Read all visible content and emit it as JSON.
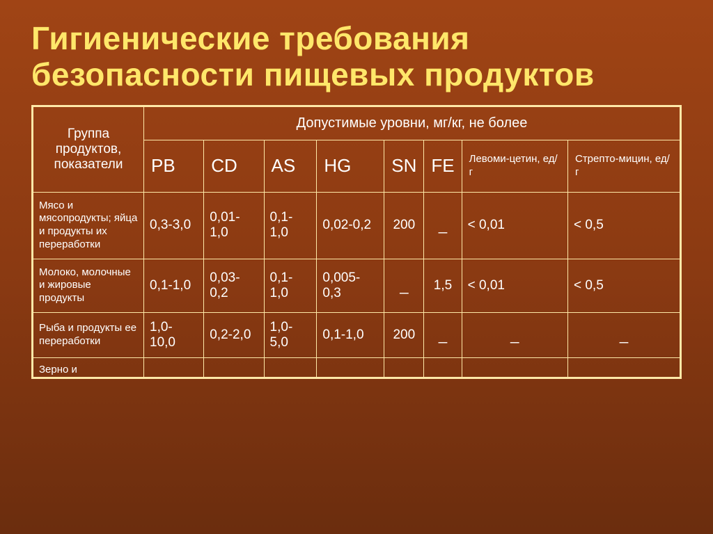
{
  "title": "Гигиенические требования безопасности пищевых продуктов",
  "header": {
    "group_label": "Группа продуктов, показатели",
    "super": "Допустимые уровни, мг/кг, не более",
    "cols": [
      "PB",
      "CD",
      "AS",
      "HG",
      "SN",
      "FE",
      "Левоми-цетин, ед/г",
      "Стрепто-мицин, ед/г"
    ]
  },
  "rows": [
    {
      "label": "Мясо и мясопродукты; яйца и продукты их переработки",
      "vals": [
        "0,3-3,0",
        "0,01-1,0",
        "0,1-1,0",
        "0,02-0,2",
        "200",
        "_",
        "< 0,01",
        "< 0,5"
      ]
    },
    {
      "label": "Молоко, молочные и жировые продукты",
      "vals": [
        "0,1-1,0",
        "0,03-0,2",
        "0,1-1,0",
        "0,005-0,3",
        "_",
        "1,5",
        "< 0,01",
        "< 0,5"
      ]
    },
    {
      "label": "Рыба и продукты ее переработки",
      "vals": [
        "1,0-10,0",
        "0,2-2,0",
        "1,0-5,0",
        "0,1-1,0",
        "200",
        "_",
        "_",
        "_"
      ]
    }
  ],
  "partial_row_label": "Зерно и"
}
